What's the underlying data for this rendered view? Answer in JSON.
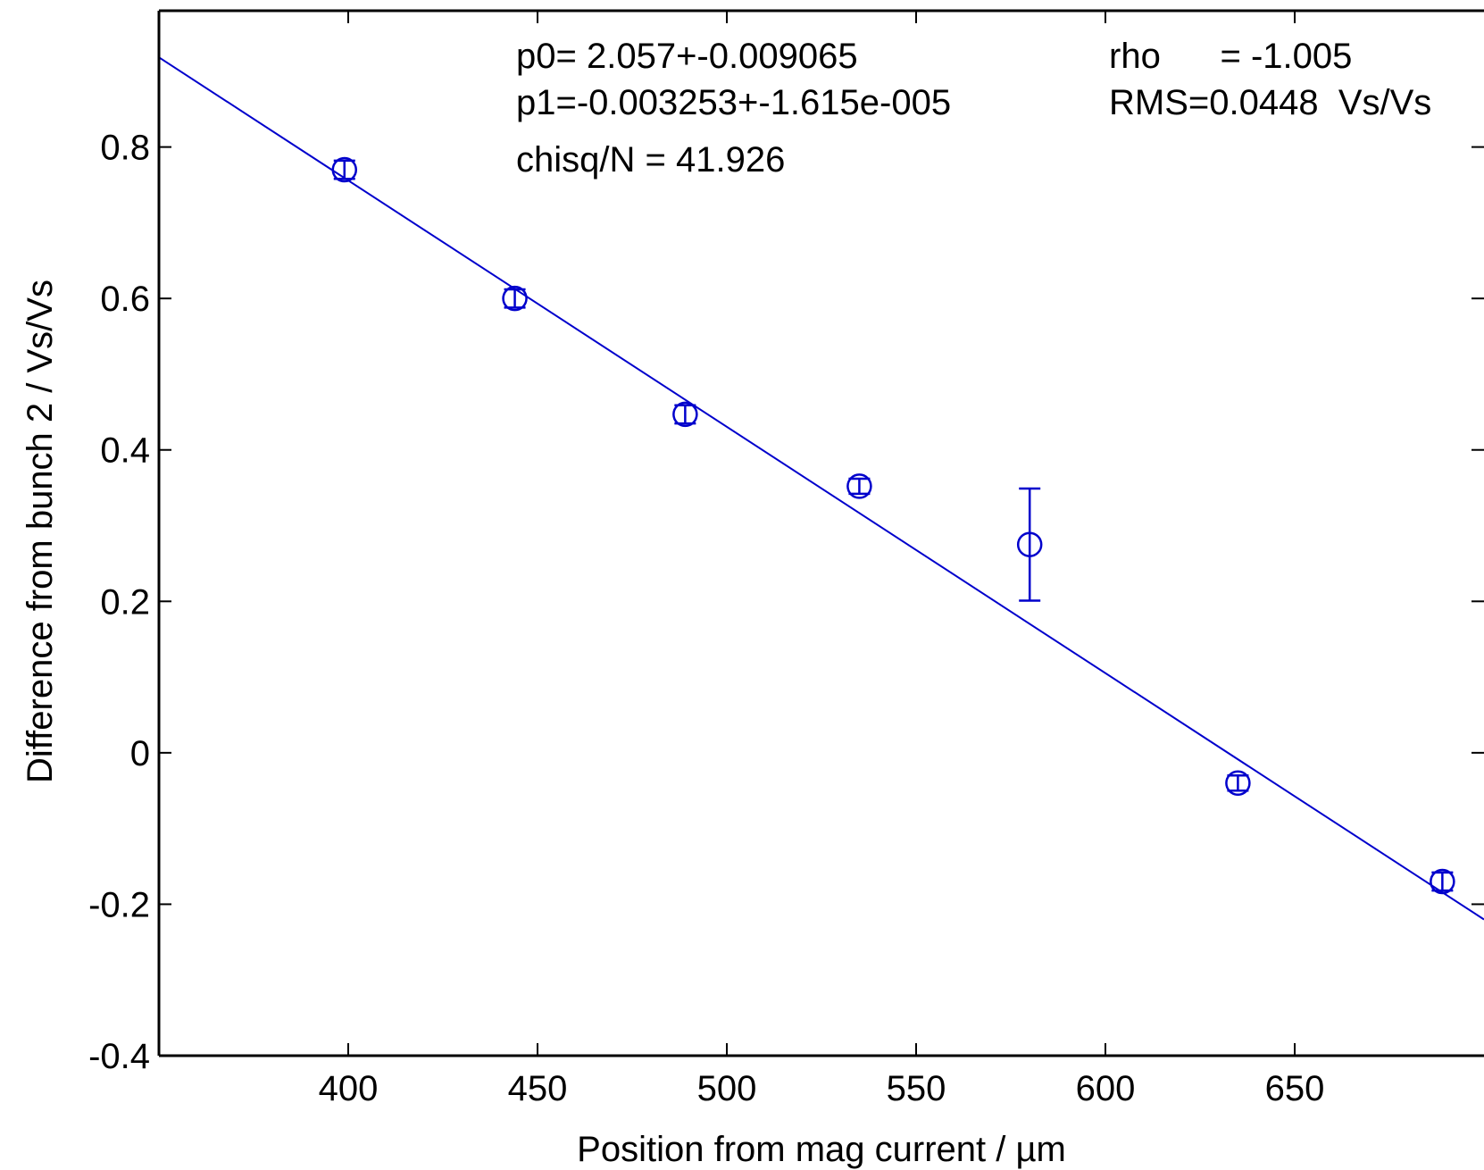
{
  "chart_data": {
    "type": "scatter",
    "title": "",
    "xlabel": "Position from mag current / µm",
    "ylabel": "Difference from bunch 2 / Vs/Vs",
    "xlim": [
      350,
      700
    ],
    "ylim": [
      -0.4,
      0.98
    ],
    "xticks": [
      400,
      450,
      500,
      550,
      600,
      650
    ],
    "yticks": [
      -0.4,
      -0.2,
      0,
      0.2,
      0.4,
      0.6,
      0.8
    ],
    "xtick_labels": [
      "400",
      "450",
      "500",
      "550",
      "600",
      "650"
    ],
    "ytick_labels": [
      "-0.4",
      "-0.2",
      "0",
      "0.2",
      "0.4",
      "0.6",
      "0.8"
    ],
    "grid": false,
    "color": "#0000cc",
    "series": [
      {
        "kind": "errorbar",
        "x": [
          399,
          444,
          489,
          535,
          580,
          635,
          689
        ],
        "y": [
          0.77,
          0.6,
          0.447,
          0.352,
          0.275,
          -0.04,
          -0.17
        ],
        "err": [
          0.012,
          0.012,
          0.012,
          0.01,
          0.074,
          0.01,
          0.012
        ]
      },
      {
        "kind": "fit-line",
        "p0": 2.057,
        "p1": -0.003253
      }
    ],
    "annotations": [
      "p0=  2.057+-0.009065",
      "p1=-0.003253+-1.615e-005",
      "chisq/N = 41.926",
      "rho      = -1.005",
      "RMS=0.0448  Vs/Vs"
    ]
  }
}
